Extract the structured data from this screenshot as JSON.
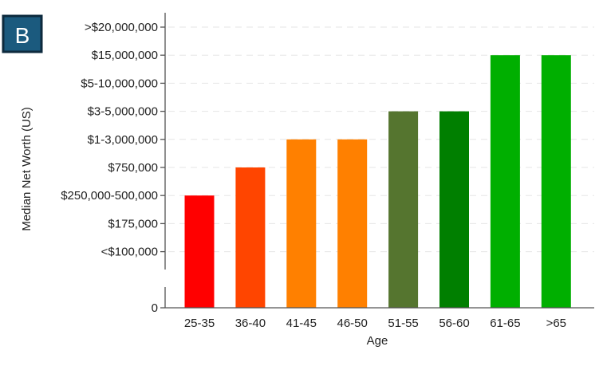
{
  "panel_label": "B",
  "colors": {
    "panel_badge_bg": "#1b5a7e",
    "panel_badge_border": "#0d2a3d",
    "grid": "#e6e6e6",
    "axis": "#555555"
  },
  "chart_data": {
    "type": "bar",
    "xlabel": "Age",
    "ylabel": "Median Net Worth (US)",
    "categories": [
      "25-35",
      "36-40",
      "41-45",
      "46-50",
      "51-55",
      "56-60",
      "61-65",
      ">65"
    ],
    "values": [
      "$250,000-500,000",
      "$750,000",
      "$1-3,000,000",
      "$1-3,000,000",
      "$3-5,000,000",
      "$3-5,000,000",
      "$15,000,000",
      "$15,000,000"
    ],
    "bar_colors": [
      "#ff0000",
      "#ff4500",
      "#ff8000",
      "#ff8000",
      "#55752f",
      "#007f00",
      "#00af00",
      "#00af00"
    ],
    "y_ticks": [
      {
        "label": "0",
        "level": 0
      },
      {
        "label": "<$100,000",
        "level": 2
      },
      {
        "label": "$175,000",
        "level": 3
      },
      {
        "label": "$250,000-500,000",
        "level": 4
      },
      {
        "label": "$750,000",
        "level": 5
      },
      {
        "label": "$1-3,000,000",
        "level": 6
      },
      {
        "label": "$3-5,000,000",
        "level": 7
      },
      {
        "label": "$5-10,000,000",
        "level": 8
      },
      {
        "label": "$15,000,000",
        "level": 9
      },
      {
        "label": ">$20,000,000",
        "level": 10
      }
    ],
    "y_axis_scale": "ordinal with axis break between 0 and <$100,000",
    "grid": "dashed horizontal",
    "legend": "none"
  }
}
